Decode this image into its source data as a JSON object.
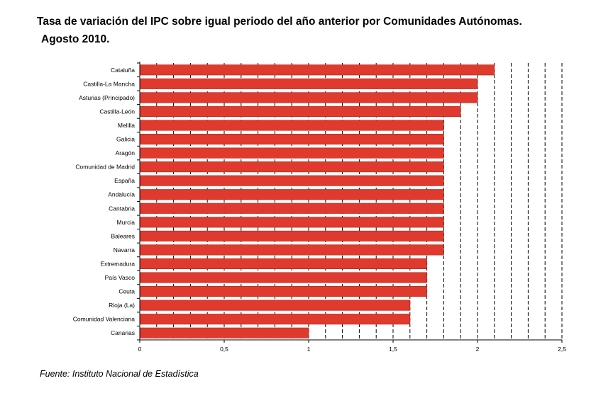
{
  "title_line1": "Tasa de variación del IPC sobre igual periodo del año anterior por Comunidades Autónomas.",
  "title_line2": "Agosto 2010.",
  "source": "Fuente: Instituto Nacional de Estadística",
  "colors": {
    "bar": "#e03a2e",
    "bar_edge": "#b02418",
    "axis": "#000000"
  },
  "chart_data": {
    "type": "bar",
    "orientation": "horizontal",
    "categories": [
      "Cataluña",
      "Castilla-La Mancha",
      "Asturias (Principado)",
      "Castilla-León",
      "Melilla",
      "Galicia",
      "Aragón",
      "Comunidad de Madrid",
      "España",
      "Andalucía",
      "Cantabria",
      "Murcia",
      "Baleares",
      "Navarra",
      "Extremadura",
      "País Vasco",
      "Ceuta",
      "Rioja (La)",
      "Comunidad Valenciana",
      "Canarias"
    ],
    "values": [
      2.1,
      2.0,
      2.0,
      1.9,
      1.8,
      1.8,
      1.8,
      1.8,
      1.8,
      1.8,
      1.8,
      1.8,
      1.8,
      1.8,
      1.7,
      1.7,
      1.7,
      1.6,
      1.6,
      1.0
    ],
    "xlim": [
      0,
      2.5
    ],
    "xticks": [
      0,
      0.5,
      1,
      1.5,
      2,
      2.5
    ],
    "xtick_labels": [
      "0",
      "0,5",
      "1",
      "1,5",
      "2",
      "2,5"
    ],
    "gridlines": [
      0.1,
      0.2,
      0.3,
      0.4,
      0.5,
      0.6,
      0.7,
      0.8,
      0.9,
      1.0,
      1.1,
      1.2,
      1.3,
      1.4,
      1.5,
      1.6,
      1.7,
      1.8,
      1.9,
      2.0,
      2.1,
      2.2,
      2.3,
      2.4,
      2.5
    ],
    "grid": "vertical dashed",
    "legend": "none"
  }
}
